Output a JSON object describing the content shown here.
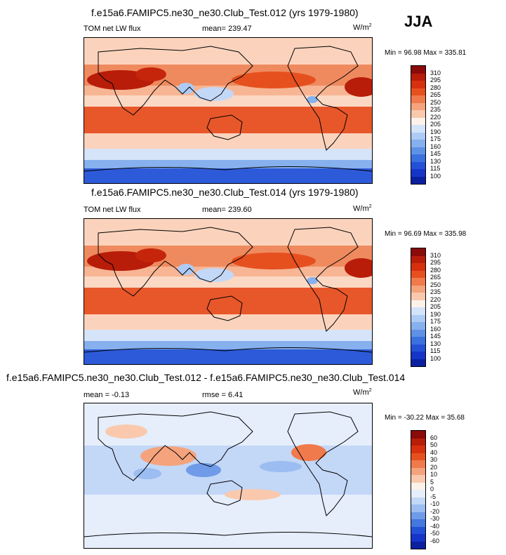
{
  "season": "JJA",
  "panels": [
    {
      "title": "f.e15a6.FAMIPC5.ne30_ne30.Club_Test.012 (yrs 1979-1980)",
      "left_label": "TOM net LW flux",
      "center_label": "mean= 239.47",
      "units": "W/m",
      "units_sup": "2",
      "minmax": "Min =  96.98 Max = 335.81",
      "colorbar_labels": [
        "310",
        "295",
        "280",
        "265",
        "250",
        "235",
        "220",
        "205",
        "190",
        "175",
        "160",
        "145",
        "130",
        "115",
        "100"
      ],
      "colorbar_colors": [
        "#8b0a0a",
        "#b81d0a",
        "#d7300f",
        "#e6501f",
        "#f07a4c",
        "#f5a37c",
        "#fac9ad",
        "#fdf2ea",
        "#d3e3fa",
        "#aecbf5",
        "#86b0ee",
        "#5f91e6",
        "#3b70df",
        "#2450d6",
        "#1535c8",
        "#0a20a0"
      ],
      "chart_data": {
        "type": "heatmap",
        "title": "f.e15a6.FAMIPC5.ne30_ne30.Club_Test.012 (yrs 1979-1980)",
        "variable": "TOM net LW flux",
        "units": "W/m2",
        "mean": 239.47,
        "min": 96.98,
        "max": 335.81,
        "contour_levels": [
          100,
          115,
          130,
          145,
          160,
          175,
          190,
          205,
          220,
          235,
          250,
          265,
          280,
          295,
          310
        ]
      }
    },
    {
      "title": "f.e15a6.FAMIPC5.ne30_ne30.Club_Test.014 (yrs 1979-1980)",
      "left_label": "TOM net LW flux",
      "center_label": "mean= 239.60",
      "units": "W/m",
      "units_sup": "2",
      "minmax": "Min =  96.69 Max = 335.98",
      "colorbar_labels": [
        "310",
        "295",
        "280",
        "265",
        "250",
        "235",
        "220",
        "205",
        "190",
        "175",
        "160",
        "145",
        "130",
        "115",
        "100"
      ],
      "colorbar_colors": [
        "#8b0a0a",
        "#b81d0a",
        "#d7300f",
        "#e6501f",
        "#f07a4c",
        "#f5a37c",
        "#fac9ad",
        "#fdf2ea",
        "#d3e3fa",
        "#aecbf5",
        "#86b0ee",
        "#5f91e6",
        "#3b70df",
        "#2450d6",
        "#1535c8",
        "#0a20a0"
      ],
      "chart_data": {
        "type": "heatmap",
        "title": "f.e15a6.FAMIPC5.ne30_ne30.Club_Test.014 (yrs 1979-1980)",
        "variable": "TOM net LW flux",
        "units": "W/m2",
        "mean": 239.6,
        "min": 96.69,
        "max": 335.98,
        "contour_levels": [
          100,
          115,
          130,
          145,
          160,
          175,
          190,
          205,
          220,
          235,
          250,
          265,
          280,
          295,
          310
        ]
      }
    },
    {
      "title": "f.e15a6.FAMIPC5.ne30_ne30.Club_Test.012 - f.e15a6.FAMIPC5.ne30_ne30.Club_Test.014",
      "left_label": "mean =  -0.13",
      "center_label": "rmse =   6.41",
      "units": "W/m",
      "units_sup": "2",
      "minmax": "Min = -30.22 Max =  35.68",
      "colorbar_labels": [
        "60",
        "50",
        "40",
        "30",
        "20",
        "10",
        "5",
        "0",
        "-5",
        "-10",
        "-20",
        "-30",
        "-40",
        "-50",
        "-60"
      ],
      "colorbar_colors": [
        "#8b0a0a",
        "#b81d0a",
        "#d7300f",
        "#e6501f",
        "#f07a4c",
        "#f5a37c",
        "#fac9ad",
        "#fdf2ea",
        "#e6eefc",
        "#c3d7f7",
        "#9bbdf1",
        "#6f9be8",
        "#4577e0",
        "#2450d6",
        "#1535c8",
        "#0a20a0"
      ],
      "chart_data": {
        "type": "heatmap",
        "title": "f.e15a6.FAMIPC5.ne30_ne30.Club_Test.012 - f.e15a6.FAMIPC5.ne30_ne30.Club_Test.014",
        "units": "W/m2",
        "mean": -0.13,
        "rmse": 6.41,
        "min": -30.22,
        "max": 35.68,
        "contour_levels": [
          -60,
          -50,
          -40,
          -30,
          -20,
          -10,
          -5,
          0,
          5,
          10,
          20,
          30,
          40,
          50,
          60
        ]
      }
    }
  ]
}
